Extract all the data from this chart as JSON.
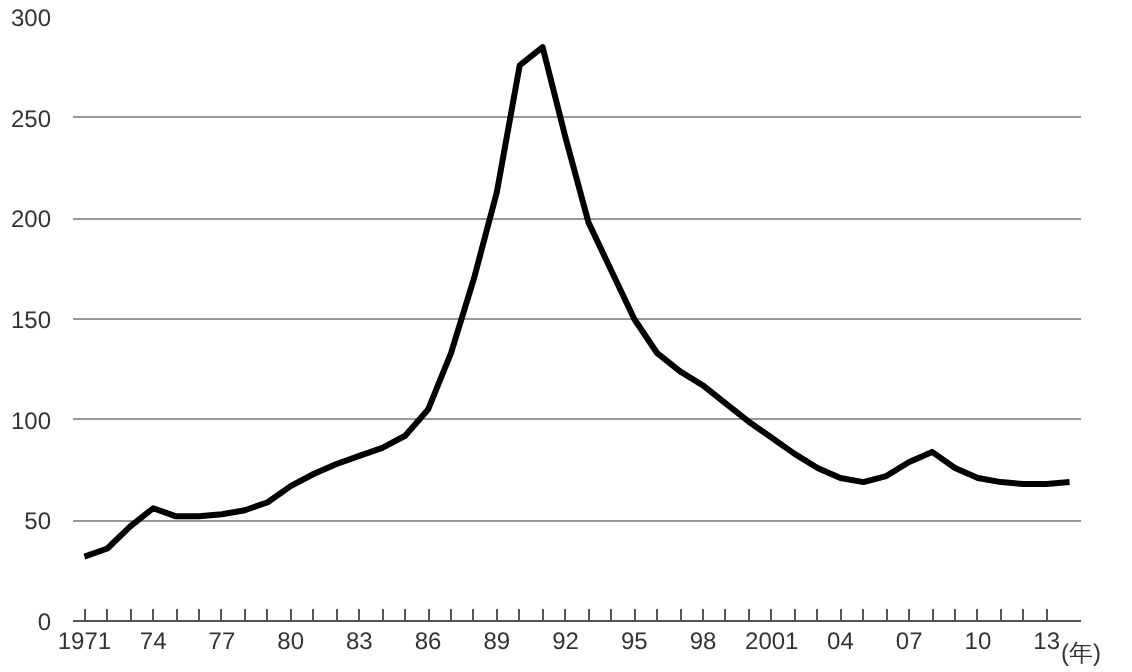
{
  "chart_data": {
    "type": "line",
    "xlabel": "(年)",
    "x": [
      1971,
      1972,
      1973,
      1974,
      1975,
      1976,
      1977,
      1978,
      1979,
      1980,
      1981,
      1982,
      1983,
      1984,
      1985,
      1986,
      1987,
      1988,
      1989,
      1990,
      1991,
      1992,
      1993,
      1994,
      1995,
      1996,
      1997,
      1998,
      1999,
      2000,
      2001,
      2002,
      2003,
      2004,
      2005,
      2006,
      2007,
      2008,
      2009,
      2010,
      2011,
      2012,
      2013,
      2014
    ],
    "series": [
      {
        "color": "#000000",
        "values": [
          32,
          36,
          47,
          56,
          52,
          52,
          53,
          55,
          59,
          67,
          73,
          78,
          82,
          86,
          92,
          105,
          133,
          170,
          213,
          276,
          285,
          240,
          198,
          174,
          150,
          133,
          124,
          117,
          108,
          99,
          91,
          83,
          76,
          71,
          69,
          72,
          79,
          84,
          76,
          71,
          69,
          68,
          68,
          69
        ]
      }
    ],
    "xlim": [
      1970.5,
      2014.5
    ],
    "xticks": [
      {
        "value": 1971,
        "label": "1971"
      },
      {
        "value": 1972,
        "label": null
      },
      {
        "value": 1973,
        "label": null
      },
      {
        "value": 1974,
        "label": "74"
      },
      {
        "value": 1975,
        "label": null
      },
      {
        "value": 1976,
        "label": null
      },
      {
        "value": 1977,
        "label": "77"
      },
      {
        "value": 1978,
        "label": null
      },
      {
        "value": 1979,
        "label": null
      },
      {
        "value": 1980,
        "label": "80"
      },
      {
        "value": 1981,
        "label": null
      },
      {
        "value": 1982,
        "label": null
      },
      {
        "value": 1983,
        "label": "83"
      },
      {
        "value": 1984,
        "label": null
      },
      {
        "value": 1985,
        "label": null
      },
      {
        "value": 1986,
        "label": "86"
      },
      {
        "value": 1987,
        "label": null
      },
      {
        "value": 1988,
        "label": null
      },
      {
        "value": 1989,
        "label": "89"
      },
      {
        "value": 1990,
        "label": null
      },
      {
        "value": 1991,
        "label": null
      },
      {
        "value": 1992,
        "label": "92"
      },
      {
        "value": 1993,
        "label": null
      },
      {
        "value": 1994,
        "label": null
      },
      {
        "value": 1995,
        "label": "95"
      },
      {
        "value": 1996,
        "label": null
      },
      {
        "value": 1997,
        "label": null
      },
      {
        "value": 1998,
        "label": "98"
      },
      {
        "value": 1999,
        "label": null
      },
      {
        "value": 2000,
        "label": null
      },
      {
        "value": 2001,
        "label": "2001"
      },
      {
        "value": 2002,
        "label": null
      },
      {
        "value": 2003,
        "label": null
      },
      {
        "value": 2004,
        "label": "04"
      },
      {
        "value": 2005,
        "label": null
      },
      {
        "value": 2006,
        "label": null
      },
      {
        "value": 2007,
        "label": "07"
      },
      {
        "value": 2008,
        "label": null
      },
      {
        "value": 2009,
        "label": null
      },
      {
        "value": 2010,
        "label": "10"
      },
      {
        "value": 2011,
        "label": null
      },
      {
        "value": 2012,
        "label": null
      },
      {
        "value": 2013,
        "label": "13"
      }
    ],
    "ylim": [
      0,
      300
    ],
    "yticks": [
      0,
      50,
      100,
      150,
      200,
      250,
      300
    ],
    "grid": "y",
    "line_style": "solid",
    "marker": "none"
  }
}
